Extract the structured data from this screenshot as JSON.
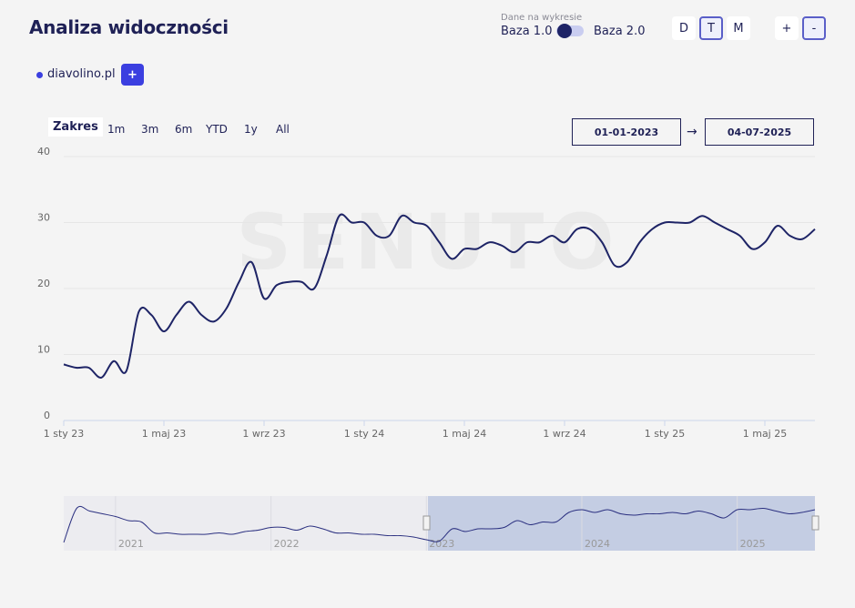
{
  "header": {
    "title": "Analiza widoczności",
    "data_label": "Dane na wykresie",
    "base_options": [
      "Baza 1.0",
      "Baza 2.0"
    ],
    "granularity": [
      "D",
      "T",
      "M"
    ],
    "zoom": [
      "+",
      "-"
    ]
  },
  "domains": {
    "add": "+"
  },
  "range": {
    "label": "Zakres",
    "buttons": [
      "1m",
      "3m",
      "6m",
      "YTD",
      "1y",
      "All"
    ],
    "from": "01-01-2023",
    "arrow": "→",
    "to": "04-07-2025"
  },
  "watermark": "SENUTO",
  "chart_data": [
    {
      "type": "line",
      "categories": [
        "1 sty 23",
        null,
        null,
        null,
        null,
        null,
        null,
        null,
        "1 maj 23",
        null,
        null,
        null,
        null,
        null,
        null,
        null,
        "1 wrz 23",
        null,
        null,
        null,
        null,
        null,
        null,
        null,
        "1 sty 24",
        null,
        null,
        null,
        null,
        null,
        null,
        null,
        "1 maj 24",
        null,
        null,
        null,
        null,
        null,
        null,
        null,
        "1 wrz 24",
        null,
        null,
        null,
        null,
        null,
        null,
        null,
        "1 sty 25",
        null,
        null,
        null,
        null,
        null,
        null,
        null,
        "1 maj 25",
        null,
        null,
        null,
        null
      ],
      "series": [
        {
          "name": "diavolino.pl",
          "color": "#1e2466",
          "values": [
            8.5,
            8,
            8,
            6.5,
            9,
            7.5,
            16.5,
            16,
            13.5,
            16,
            18,
            16,
            15,
            17,
            21,
            24,
            18.5,
            20.5,
            21,
            21,
            20,
            25,
            31,
            30,
            30,
            28,
            28,
            31,
            30,
            29.5,
            27,
            24.5,
            26,
            26,
            27,
            26.5,
            25.5,
            27,
            27,
            28,
            27,
            29,
            29,
            27,
            23.5,
            24,
            27,
            29,
            30,
            30,
            30,
            31,
            30,
            29,
            28,
            26,
            27,
            29.5,
            28,
            27.5,
            29
          ]
        }
      ],
      "ylim": [
        0,
        40
      ],
      "yticks": [
        0,
        10,
        20,
        30,
        40
      ],
      "grid": true
    },
    {
      "type": "line",
      "categories": [
        null,
        null,
        null,
        null,
        "2021",
        null,
        null,
        null,
        null,
        null,
        null,
        null,
        null,
        null,
        null,
        null,
        "2022",
        null,
        null,
        null,
        null,
        null,
        null,
        null,
        null,
        null,
        null,
        null,
        "2023",
        null,
        null,
        null,
        null,
        null,
        null,
        null,
        null,
        null,
        null,
        null,
        "2024",
        null,
        null,
        null,
        null,
        null,
        null,
        null,
        null,
        null,
        null,
        null,
        "2025",
        null,
        null,
        null,
        null,
        null,
        null
      ],
      "values": [
        6,
        31,
        29,
        27,
        25,
        22,
        21,
        13,
        13,
        12,
        12,
        12,
        13,
        12,
        14,
        15,
        17,
        17,
        15,
        18,
        16,
        13,
        13,
        12,
        12,
        11,
        11,
        10,
        8,
        7,
        16,
        14,
        16,
        16,
        17,
        22,
        19,
        21,
        21,
        28,
        30,
        28,
        30,
        27,
        26,
        27,
        27,
        28,
        27,
        29,
        27,
        24,
        30,
        30,
        31,
        29,
        27,
        28,
        30
      ],
      "color": "#2b3080"
    }
  ]
}
